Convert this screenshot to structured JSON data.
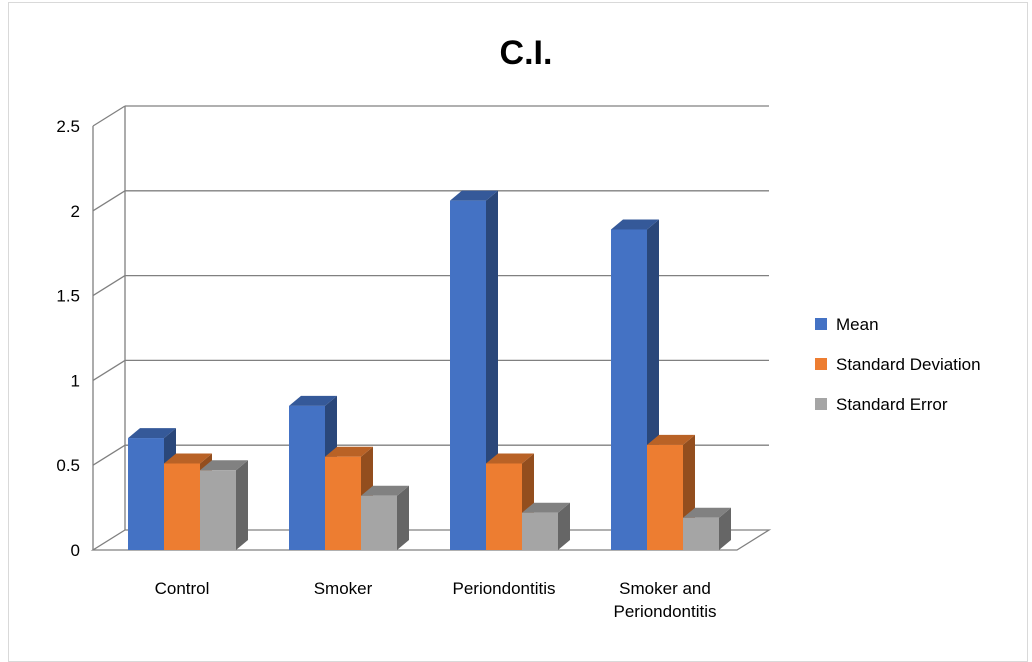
{
  "chart_data": {
    "type": "bar",
    "title": "C.I.",
    "xlabel": "",
    "ylabel": "",
    "ylim": [
      0,
      2.5
    ],
    "yticks": [
      "0",
      "0.5",
      "1",
      "1.5",
      "2",
      "2.5"
    ],
    "grid": true,
    "legend_position": "right",
    "categories": [
      [
        "Control"
      ],
      [
        "Smoker"
      ],
      [
        "Periondontitis"
      ],
      [
        "Smoker and",
        "Periondontitis"
      ]
    ],
    "series": [
      {
        "name": "Mean",
        "color": "#4472c4",
        "values": [
          0.66,
          0.85,
          2.06,
          1.89
        ]
      },
      {
        "name": "Standard Deviation",
        "color": "#ed7d31",
        "values": [
          0.51,
          0.55,
          0.51,
          0.62
        ]
      },
      {
        "name": "Standard Error",
        "color": "#a5a5a5",
        "values": [
          0.47,
          0.32,
          0.22,
          0.19
        ]
      }
    ]
  }
}
